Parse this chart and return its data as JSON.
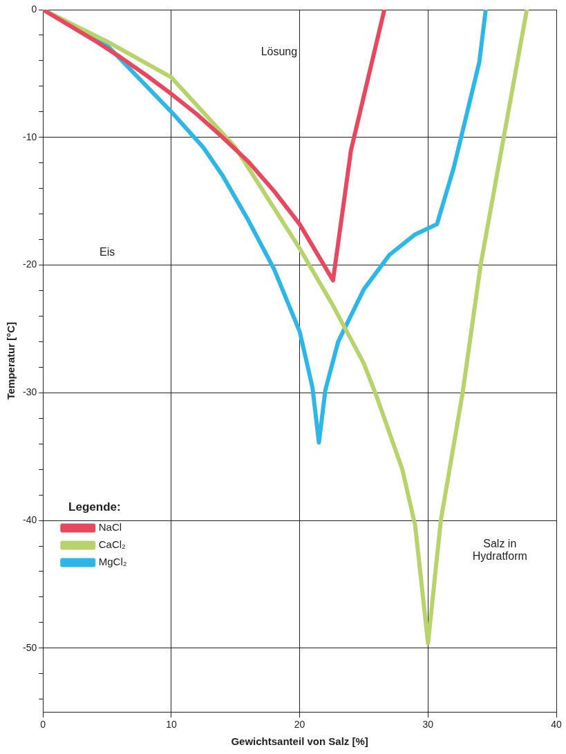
{
  "chart_data": {
    "type": "line",
    "xlabel": "Gewichtsanteil von Salz [%]",
    "ylabel": "Temperatur [°C]",
    "legend_title": "Legende:",
    "legend": "bottom left",
    "grid": true,
    "marker": "none",
    "line_style": "solid",
    "xlim": [
      0,
      40
    ],
    "xticks": [
      0,
      10,
      20,
      30,
      40
    ],
    "ylim": [
      -55,
      0
    ],
    "yticks": [
      0,
      {
        "value": -2,
        "label": null
      },
      {
        "value": -4,
        "label": null
      },
      {
        "value": -6,
        "label": null
      },
      {
        "value": -8,
        "label": null
      },
      -10,
      {
        "value": -12,
        "label": null
      },
      {
        "value": -14,
        "label": null
      },
      {
        "value": -16,
        "label": null
      },
      {
        "value": -18,
        "label": null
      },
      -20,
      {
        "value": -22,
        "label": null
      },
      {
        "value": -24,
        "label": null
      },
      {
        "value": -26,
        "label": null
      },
      {
        "value": -28,
        "label": null
      },
      -30,
      {
        "value": -32,
        "label": null
      },
      {
        "value": -34,
        "label": null
      },
      {
        "value": -36,
        "label": null
      },
      {
        "value": -38,
        "label": null
      },
      -40,
      {
        "value": -42,
        "label": null
      },
      {
        "value": -44,
        "label": null
      },
      {
        "value": -46,
        "label": null
      },
      {
        "value": -48,
        "label": null
      },
      -50,
      {
        "value": -52,
        "label": null
      },
      {
        "value": -54,
        "label": null
      }
    ],
    "annotations": [
      "Lösung",
      "Eis",
      "Salz in\nHydratform"
    ],
    "series": [
      {
        "name": "NaCl",
        "color": "#e8485e",
        "x": [
          0,
          2,
          4,
          6,
          8,
          10,
          12,
          14,
          16,
          18,
          20,
          22.6,
          24,
          26.6
        ],
        "values": [
          0,
          -1.2,
          -2.4,
          -3.7,
          -5.1,
          -6.6,
          -8.2,
          -10,
          -11.9,
          -14.2,
          -16.8,
          -21.2,
          -11,
          0
        ]
      },
      {
        "name": "CaCl₂",
        "color": "#b8d36b",
        "x": [
          0,
          5,
          10,
          15,
          20,
          22.5,
          25,
          26,
          28,
          29,
          30,
          31,
          32.7,
          34.1,
          35.9,
          37.7
        ],
        "values": [
          0,
          -2.5,
          -5.3,
          -10.8,
          -18.7,
          -23,
          -27.7,
          -30.3,
          -36,
          -40.4,
          -49.6,
          -40,
          -30,
          -20,
          -10,
          0
        ]
      },
      {
        "name": "MgCl₂",
        "color": "#2eb6e6",
        "x": [
          0,
          5,
          10,
          12.5,
          14,
          16,
          18,
          20,
          21,
          21.5,
          22,
          23,
          25,
          27,
          29,
          30.7,
          32,
          34,
          34.5
        ],
        "values": [
          0,
          -2.8,
          -8,
          -10.8,
          -13,
          -16.5,
          -20.3,
          -25.2,
          -29.6,
          -33.9,
          -29.8,
          -26,
          -21.9,
          -19.2,
          -17.6,
          -16.8,
          -12.4,
          -4.1,
          0
        ]
      }
    ]
  }
}
